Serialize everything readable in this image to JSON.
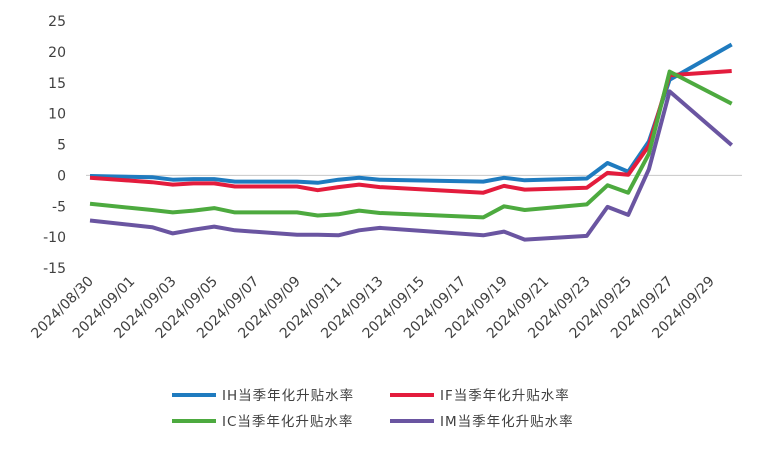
{
  "chart_data": {
    "type": "line",
    "title": "",
    "xlabel": "",
    "ylabel": "",
    "ylim": [
      -15,
      25
    ],
    "y_ticks": [
      -15,
      -10,
      -5,
      0,
      5,
      10,
      15,
      20,
      25
    ],
    "x_tick_labels": [
      "2024/08/30",
      "2024/09/01",
      "2024/09/03",
      "2024/09/05",
      "2024/09/07",
      "2024/09/09",
      "2024/09/11",
      "2024/09/13",
      "2024/09/15",
      "2024/09/17",
      "2024/09/19",
      "2024/09/21",
      "2024/09/23",
      "2024/09/25",
      "2024/09/27",
      "2024/09/29"
    ],
    "x": [
      "2024/08/30",
      "2024/09/02",
      "2024/09/03",
      "2024/09/04",
      "2024/09/05",
      "2024/09/06",
      "2024/09/09",
      "2024/09/10",
      "2024/09/11",
      "2024/09/12",
      "2024/09/13",
      "2024/09/18",
      "2024/09/19",
      "2024/09/20",
      "2024/09/23",
      "2024/09/24",
      "2024/09/25",
      "2024/09/26",
      "2024/09/27",
      "2024/09/30"
    ],
    "grid": false,
    "zero_line": true,
    "legend_position": "bottom",
    "series": [
      {
        "name": "IH当季年化升贴水率",
        "color": "#1f7bbf",
        "values": [
          -0.1,
          -0.3,
          -0.7,
          -0.6,
          -0.6,
          -1.0,
          -1.0,
          -1.2,
          -0.7,
          -0.4,
          -0.7,
          -1.0,
          -0.4,
          -0.8,
          -0.5,
          2.0,
          0.6,
          5.5,
          15.5,
          21.2
        ]
      },
      {
        "name": "IF当季年化升贴水率",
        "color": "#e31c3d",
        "values": [
          -0.4,
          -1.1,
          -1.5,
          -1.3,
          -1.3,
          -1.8,
          -1.8,
          -2.4,
          -1.9,
          -1.5,
          -1.9,
          -2.8,
          -1.7,
          -2.3,
          -2.0,
          0.4,
          0.1,
          4.8,
          16.2,
          16.9
        ]
      },
      {
        "name": "IC当季年化升贴水率",
        "color": "#4daa3f",
        "values": [
          -4.6,
          -5.6,
          -6.0,
          -5.7,
          -5.3,
          -6.0,
          -6.0,
          -6.5,
          -6.3,
          -5.7,
          -6.1,
          -6.8,
          -5.0,
          -5.6,
          -4.7,
          -1.6,
          -2.8,
          3.5,
          16.8,
          11.6
        ]
      },
      {
        "name": "IM当季年化升贴水率",
        "color": "#6a55a1",
        "values": [
          -7.3,
          -8.4,
          -9.4,
          -8.8,
          -8.3,
          -8.9,
          -9.6,
          -9.6,
          -9.7,
          -8.9,
          -8.5,
          -9.7,
          -9.1,
          -10.4,
          -9.8,
          -5.1,
          -6.4,
          1.0,
          13.6,
          4.9
        ]
      }
    ]
  }
}
